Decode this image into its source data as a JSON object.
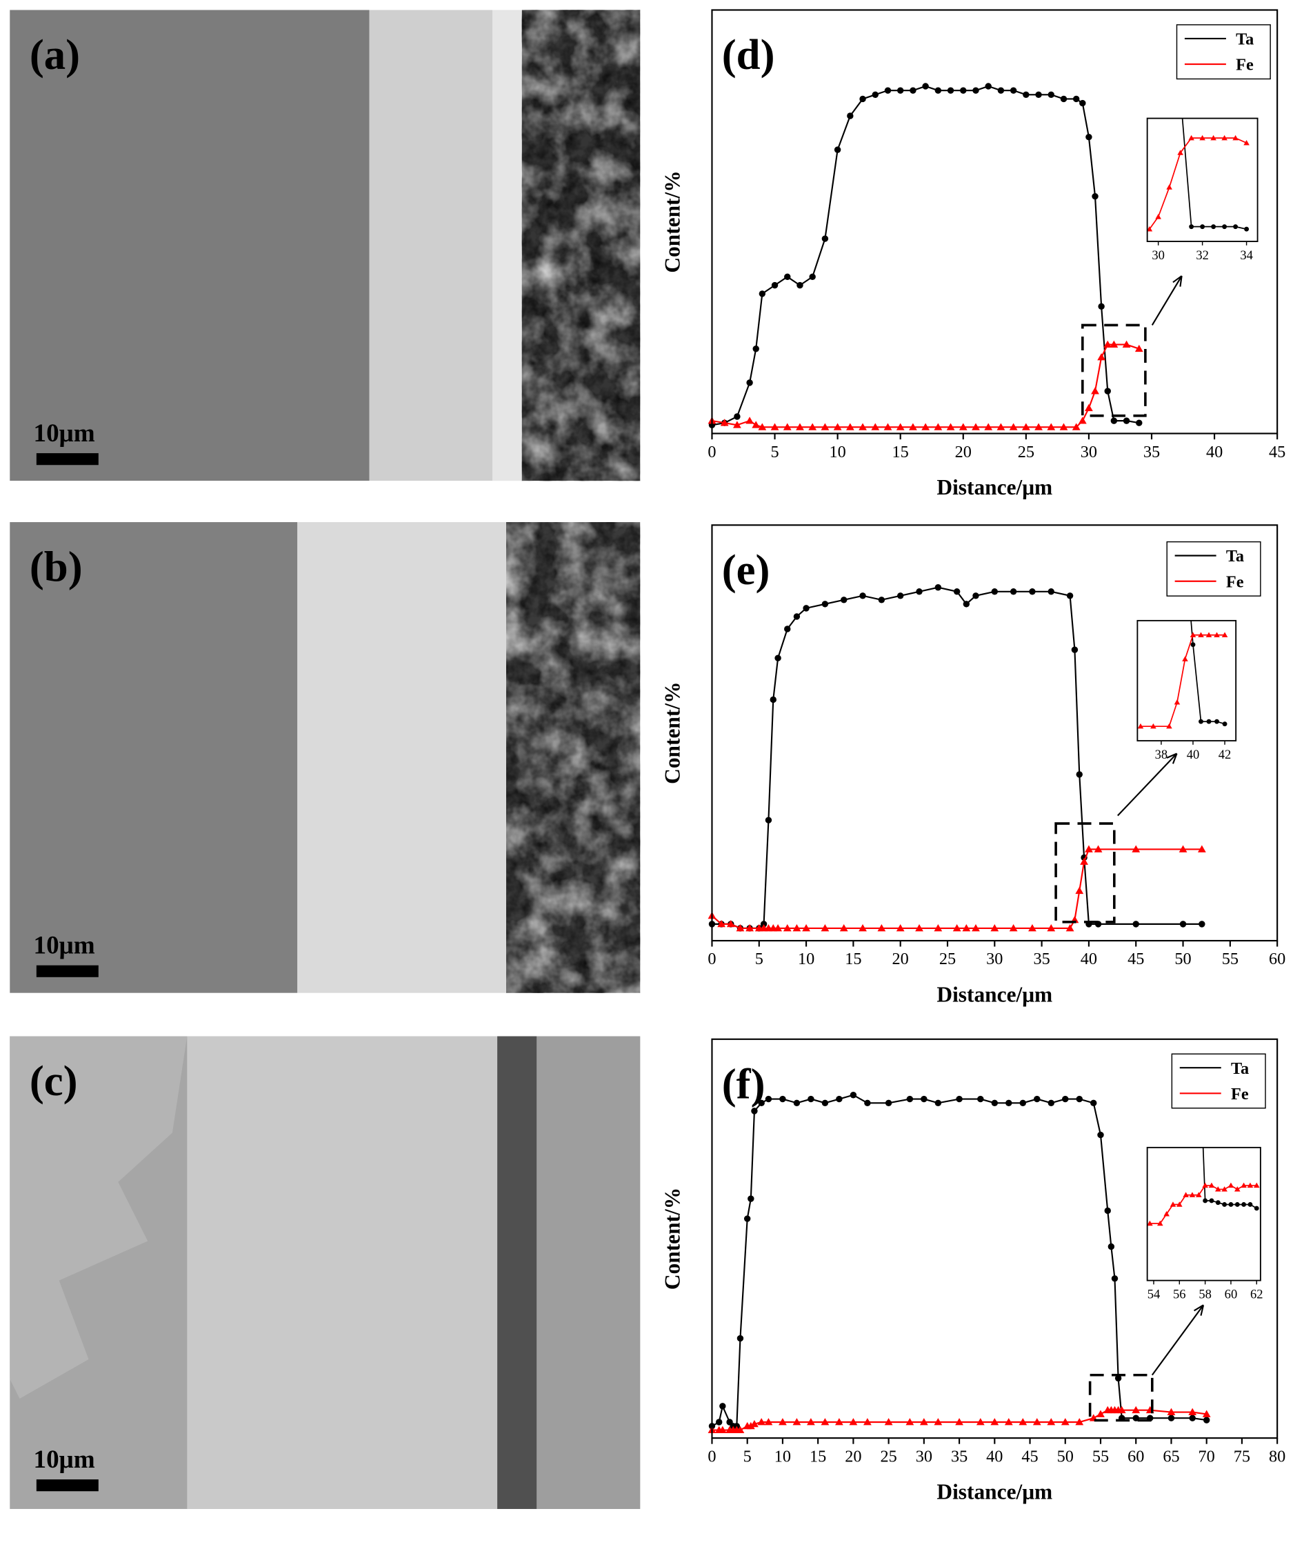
{
  "images": [
    {
      "label": "(a)",
      "scale_bar": "10μm"
    },
    {
      "label": "(b)",
      "scale_bar": "10μm"
    },
    {
      "label": "(c)",
      "scale_bar": "10μm"
    }
  ],
  "chart_data": [
    {
      "type": "line",
      "label": "(d)",
      "xlabel": "Distance/μm",
      "ylabel": "Content/%",
      "xlim": [
        0,
        45
      ],
      "ylim": [
        0,
        100
      ],
      "xticks": [
        0,
        5,
        10,
        15,
        20,
        25,
        30,
        35,
        40,
        45
      ],
      "x": [
        0,
        1,
        2,
        3,
        3.5,
        4,
        5,
        6,
        7,
        8,
        9,
        10,
        11,
        12,
        13,
        14,
        15,
        16,
        17,
        18,
        19,
        20,
        21,
        22,
        23,
        24,
        25,
        26,
        27,
        28,
        29,
        29.5,
        30,
        30.5,
        31,
        31.5,
        32,
        33,
        34
      ],
      "series": [
        {
          "name": "Ta",
          "color": "#000000",
          "marker": "circle",
          "values": [
            2,
            2.5,
            4,
            12,
            20,
            33,
            35,
            37,
            35,
            37,
            46,
            67,
            75,
            79,
            80,
            81,
            81,
            81,
            82,
            81,
            81,
            81,
            81,
            82,
            81,
            81,
            80,
            80,
            80,
            79,
            79,
            78,
            70,
            56,
            30,
            10,
            3,
            3,
            2.5
          ]
        },
        {
          "name": "Fe",
          "color": "#ff0000",
          "marker": "triangle",
          "values": [
            3,
            2.5,
            2,
            3,
            2,
            1.5,
            1.5,
            1.5,
            1.5,
            1.5,
            1.5,
            1.5,
            1.5,
            1.5,
            1.5,
            1.5,
            1.5,
            1.5,
            1.5,
            1.5,
            1.5,
            1.5,
            1.5,
            1.5,
            1.5,
            1.5,
            1.5,
            1.5,
            1.5,
            1.5,
            1.5,
            3,
            6,
            10,
            18,
            21,
            21,
            21,
            20
          ]
        }
      ],
      "inset": {
        "xlim": [
          29.5,
          34.5
        ],
        "ylim": [
          0,
          25
        ],
        "xticks": [
          30,
          32,
          34
        ],
        "x": [
          29.6,
          30,
          30.5,
          31,
          31.5,
          32,
          32.5,
          33,
          33.5,
          34
        ],
        "series": [
          {
            "values": [
              null,
              null,
              null,
              30,
              3,
              3,
              3,
              3,
              3,
              2.5
            ]
          },
          {
            "values": [
              2.5,
              5,
              11,
              18,
              21,
              21,
              21,
              21,
              21,
              20
            ]
          }
        ]
      }
    },
    {
      "type": "line",
      "label": "(e)",
      "xlabel": "Distance/μm",
      "ylabel": "Content/%",
      "xlim": [
        0,
        60
      ],
      "ylim": [
        0,
        100
      ],
      "xticks": [
        0,
        5,
        10,
        15,
        20,
        25,
        30,
        35,
        40,
        45,
        50,
        55,
        60
      ],
      "x": [
        0,
        1,
        2,
        3,
        4,
        5,
        5.5,
        6,
        6.5,
        7,
        8,
        9,
        10,
        12,
        14,
        16,
        18,
        20,
        22,
        24,
        26,
        27,
        28,
        30,
        32,
        34,
        36,
        38,
        38.5,
        39,
        39.5,
        40,
        41,
        45,
        50,
        52
      ],
      "series": [
        {
          "name": "Ta",
          "color": "#000000",
          "marker": "circle",
          "values": [
            4,
            4,
            4,
            3,
            3,
            3,
            4,
            29,
            58,
            68,
            75,
            78,
            80,
            81,
            82,
            83,
            82,
            83,
            84,
            85,
            84,
            81,
            83,
            84,
            84,
            84,
            84,
            83,
            70,
            40,
            20,
            4,
            4,
            4,
            4,
            4
          ]
        },
        {
          "name": "Fe",
          "color": "#ff0000",
          "marker": "triangle",
          "values": [
            6,
            4,
            4,
            3,
            3,
            3,
            3,
            3,
            3,
            3,
            3,
            3,
            3,
            3,
            3,
            3,
            3,
            3,
            3,
            3,
            3,
            3,
            3,
            3,
            3,
            3,
            3,
            3,
            5,
            12,
            19,
            22,
            22,
            22,
            22,
            22
          ]
        }
      ],
      "inset": {
        "xlim": [
          36.5,
          42.7
        ],
        "ylim": [
          0,
          25
        ],
        "xticks": [
          38,
          40,
          42
        ],
        "x": [
          36.7,
          37.5,
          38.5,
          39,
          39.5,
          40,
          40.5,
          41,
          41.5,
          42
        ],
        "series": [
          {
            "values": [
              null,
              null,
              null,
              null,
              40,
              20,
              4,
              4,
              4,
              3.5
            ]
          },
          {
            "values": [
              3,
              3,
              3,
              8,
              17,
              22,
              22,
              22,
              22,
              22
            ]
          }
        ]
      }
    },
    {
      "type": "line",
      "label": "(f)",
      "xlabel": "Distance/μm",
      "ylabel": "Content/%",
      "xlim": [
        0,
        80
      ],
      "ylim": [
        0,
        100
      ],
      "xticks": [
        0,
        5,
        10,
        15,
        20,
        25,
        30,
        35,
        40,
        45,
        50,
        55,
        60,
        65,
        70,
        75,
        80
      ],
      "x": [
        0,
        1,
        1.5,
        2.5,
        3,
        3.5,
        4,
        5,
        5.5,
        6,
        7,
        8,
        10,
        12,
        14,
        16,
        18,
        20,
        22,
        25,
        28,
        30,
        32,
        35,
        38,
        40,
        42,
        44,
        46,
        48,
        50,
        52,
        54,
        55,
        56,
        56.5,
        57,
        57.5,
        58,
        60,
        62,
        65,
        68,
        70
      ],
      "series": [
        {
          "name": "Ta",
          "color": "#000000",
          "marker": "circle",
          "values": [
            3,
            4,
            8,
            4,
            3,
            3,
            25,
            55,
            60,
            82,
            84,
            85,
            85,
            84,
            85,
            84,
            85,
            86,
            84,
            84,
            85,
            85,
            84,
            85,
            85,
            84,
            84,
            84,
            85,
            84,
            85,
            85,
            84,
            76,
            57,
            48,
            40,
            15,
            5,
            5,
            5,
            5,
            5,
            4.5
          ]
        },
        {
          "name": "Fe",
          "color": "#ff0000",
          "marker": "triangle",
          "values": [
            2,
            2,
            2,
            2,
            2,
            2,
            2,
            3,
            3,
            3.5,
            4,
            4,
            4,
            4,
            4,
            4,
            4,
            4,
            4,
            4,
            4,
            4,
            4,
            4,
            4,
            4,
            4,
            4,
            4,
            4,
            4,
            4,
            5,
            6,
            7,
            7,
            7,
            7,
            7,
            7,
            7,
            6.5,
            6.5,
            6
          ]
        }
      ],
      "inset": {
        "xlim": [
          53.5,
          62.3
        ],
        "ylim": [
          2,
          9
        ],
        "xticks": [
          54,
          56,
          58,
          60,
          62
        ],
        "x": [
          53.7,
          54.5,
          55,
          55.5,
          56,
          56.5,
          57,
          57.5,
          58,
          58.5,
          59,
          59.5,
          60,
          60.5,
          61,
          61.5,
          62
        ],
        "series": [
          {
            "values": [
              null,
              null,
              null,
              null,
              null,
              null,
              null,
              15,
              6.2,
              6.2,
              6.1,
              6,
              6,
              6,
              6,
              6,
              5.8
            ]
          },
          {
            "values": [
              5,
              5,
              5.5,
              6,
              6,
              6.5,
              6.5,
              6.5,
              7,
              7,
              6.8,
              6.8,
              7,
              6.8,
              7,
              7,
              7
            ]
          }
        ]
      }
    }
  ]
}
